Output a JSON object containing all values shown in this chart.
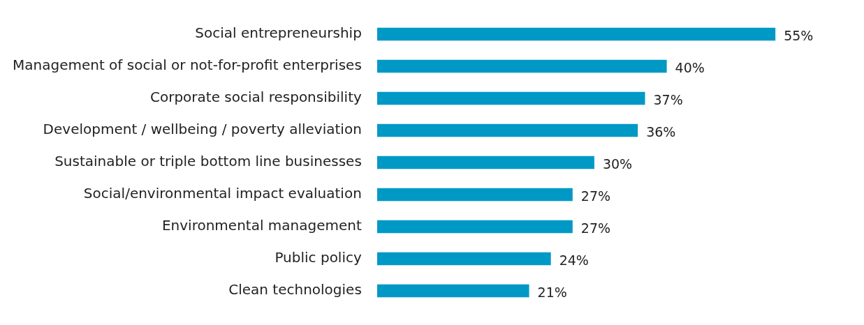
{
  "chart_data": {
    "type": "bar",
    "orientation": "horizontal",
    "categories": [
      "Social entrepreneurship",
      "Management of social or not-for-profit enterprises",
      "Corporate social responsibility",
      "Development / wellbeing / poverty alleviation",
      "Sustainable or triple bottom line businesses",
      "Social/environmental impact evaluation",
      "Environmental management",
      "Public policy",
      "Clean technologies"
    ],
    "values": [
      55,
      40,
      37,
      36,
      30,
      27,
      27,
      24,
      21
    ],
    "value_labels": [
      "55%",
      "40%",
      "37%",
      "36%",
      "30%",
      "27%",
      "27%",
      "24%",
      "21%"
    ],
    "color": "#0099c6",
    "legend": false,
    "tick_labels": "y"
  }
}
